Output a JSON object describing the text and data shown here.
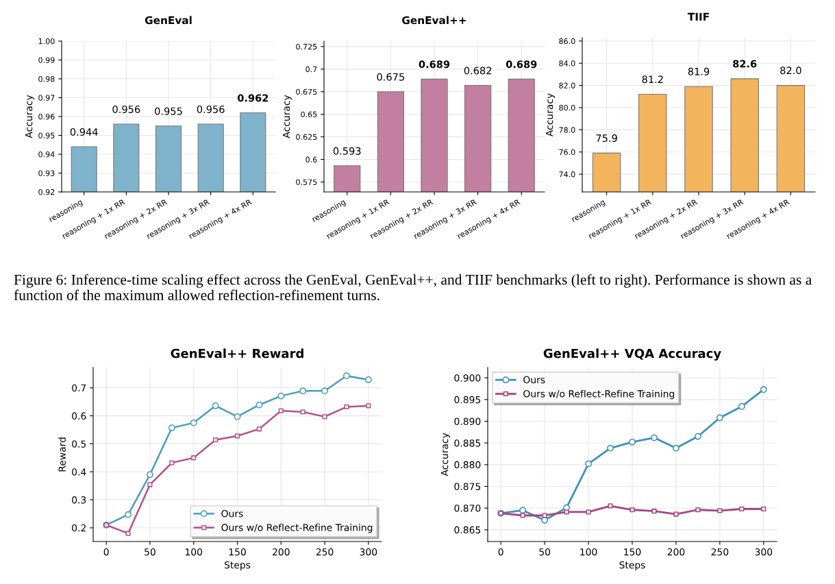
{
  "chart_data": [
    {
      "type": "bar",
      "title": "GenEval",
      "ylabel": "Accuracy",
      "categories": [
        "reasoning",
        "reasoning + 1x RR",
        "reasoning + 2x RR",
        "reasoning + 3x RR",
        "reasoning + 4x RR"
      ],
      "values": [
        0.944,
        0.956,
        0.955,
        0.956,
        0.962
      ],
      "color": "#7fb3cc",
      "ylim": [
        0.92,
        1.0
      ],
      "yticks": [
        {
          "value": 0.92,
          "label": "0.92"
        },
        {
          "value": 0.93,
          "label": "0.93"
        },
        {
          "value": 0.94,
          "label": "0.94"
        },
        {
          "value": 0.95,
          "label": "0.95"
        },
        {
          "value": 0.96,
          "label": "0.96"
        },
        {
          "value": 0.97,
          "label": "0.97"
        },
        {
          "value": 0.98,
          "label": "0.98"
        },
        {
          "value": 0.99,
          "label": "0.99"
        },
        {
          "value": 1.0,
          "label": "1.00"
        }
      ],
      "value_labels": [
        "0.944",
        "0.956",
        "0.955",
        "0.956",
        "0.962"
      ],
      "grid": true,
      "annotations": [
        "Figure 6: Inference-time scaling effect across the GenEval, GenEval++, and TIIF benchmarks (left to right). Performance is shown as a function of the maximum allowed reflection-refinement turns."
      ]
    },
    {
      "type": "bar",
      "title": "GenEval++",
      "ylabel": "Accuracy",
      "categories": [
        "reasoning",
        "reasoning + 1x RR",
        "reasoning + 2x RR",
        "reasoning + 3x RR",
        "reasoning + 4x RR"
      ],
      "values": [
        0.593,
        0.675,
        0.689,
        0.682,
        0.689
      ],
      "color": "#c27fa0",
      "ylim": [
        0.564,
        0.731
      ],
      "yticks": [
        0.575,
        0.6,
        0.625,
        0.65,
        0.675,
        0.7,
        0.725
      ],
      "value_labels": [
        "0.593",
        "0.675",
        "0.689",
        "0.682",
        "0.689"
      ],
      "grid": true
    },
    {
      "type": "bar",
      "title": "TIIF",
      "ylabel": "Accuracy",
      "categories": [
        "reasoning",
        "reasoning + 1x RR",
        "reasoning + 2x RR",
        "reasoning + 3x RR",
        "reasoning + 4x RR"
      ],
      "values": [
        75.9,
        81.2,
        81.9,
        82.6,
        82.0
      ],
      "color": "#f2b45c",
      "ylim": [
        72.4,
        86.3
      ],
      "yticks": [
        {
          "value": 74,
          "label": "74.0"
        },
        {
          "value": 76,
          "label": "76.0"
        },
        {
          "value": 78,
          "label": "78.0"
        },
        {
          "value": 80,
          "label": "80.0"
        },
        {
          "value": 82,
          "label": "82.0"
        },
        {
          "value": 84,
          "label": "84.0"
        },
        {
          "value": 86,
          "label": "86.0"
        }
      ],
      "value_labels": [
        "75.9",
        "81.2",
        "81.9",
        "82.6",
        "82.0"
      ],
      "grid": true
    },
    {
      "type": "line",
      "title": "GenEval++ Reward",
      "xlabel": "Steps",
      "ylabel": "Reward",
      "x": [
        0,
        25,
        50,
        75,
        100,
        125,
        150,
        175,
        200,
        225,
        250,
        275,
        300
      ],
      "xlim": [
        -15,
        315
      ],
      "xticks": [
        0,
        50,
        100,
        150,
        200,
        250,
        300
      ],
      "ylim": [
        0.151,
        0.773
      ],
      "yticks": [
        0.2,
        0.3,
        0.4,
        0.5,
        0.6,
        0.7
      ],
      "grid": true,
      "legend": "lower right",
      "series": [
        {
          "name": "Ours",
          "color": "#4a9dbf",
          "marker": "circle",
          "values": [
            0.21,
            0.247,
            0.39,
            0.557,
            0.575,
            0.636,
            0.597,
            0.639,
            0.671,
            0.689,
            0.689,
            0.743,
            0.729
          ]
        },
        {
          "name": "Ours w/o Reflect-Refine Training",
          "color": "#b5508a",
          "marker": "square",
          "values": [
            0.21,
            0.18,
            0.354,
            0.432,
            0.45,
            0.514,
            0.528,
            0.553,
            0.618,
            0.614,
            0.597,
            0.632,
            0.636
          ]
        }
      ]
    },
    {
      "type": "line",
      "title": "GenEval++ VQA Accuracy",
      "xlabel": "Steps",
      "ylabel": "Accuracy",
      "x": [
        0,
        25,
        50,
        75,
        100,
        125,
        150,
        175,
        200,
        225,
        250,
        275,
        300
      ],
      "xlim": [
        -15,
        315
      ],
      "xticks": [
        0,
        50,
        100,
        150,
        200,
        250,
        300
      ],
      "ylim": [
        0.8623,
        0.9024
      ],
      "yticks": [
        {
          "value": 0.865,
          "label": "0.865"
        },
        {
          "value": 0.87,
          "label": "0.870"
        },
        {
          "value": 0.875,
          "label": "0.875"
        },
        {
          "value": 0.88,
          "label": "0.880"
        },
        {
          "value": 0.885,
          "label": "0.885"
        },
        {
          "value": 0.89,
          "label": "0.890"
        },
        {
          "value": 0.895,
          "label": "0.895"
        },
        {
          "value": 0.9,
          "label": "0.900"
        }
      ],
      "grid": true,
      "legend": "top left",
      "series": [
        {
          "name": "Ours",
          "color": "#3a93b8",
          "marker": "circle",
          "values": [
            0.8688,
            0.8695,
            0.8672,
            0.8701,
            0.8802,
            0.8838,
            0.8852,
            0.8862,
            0.8838,
            0.8865,
            0.8908,
            0.8934,
            0.8973
          ]
        },
        {
          "name": "Ours w/o Reflect-Refine Training",
          "color": "#a8457e",
          "marker": "square",
          "values": [
            0.8688,
            0.8683,
            0.8683,
            0.8691,
            0.8691,
            0.8705,
            0.8696,
            0.8693,
            0.8686,
            0.8696,
            0.8694,
            0.8698,
            0.8698
          ]
        }
      ]
    }
  ]
}
